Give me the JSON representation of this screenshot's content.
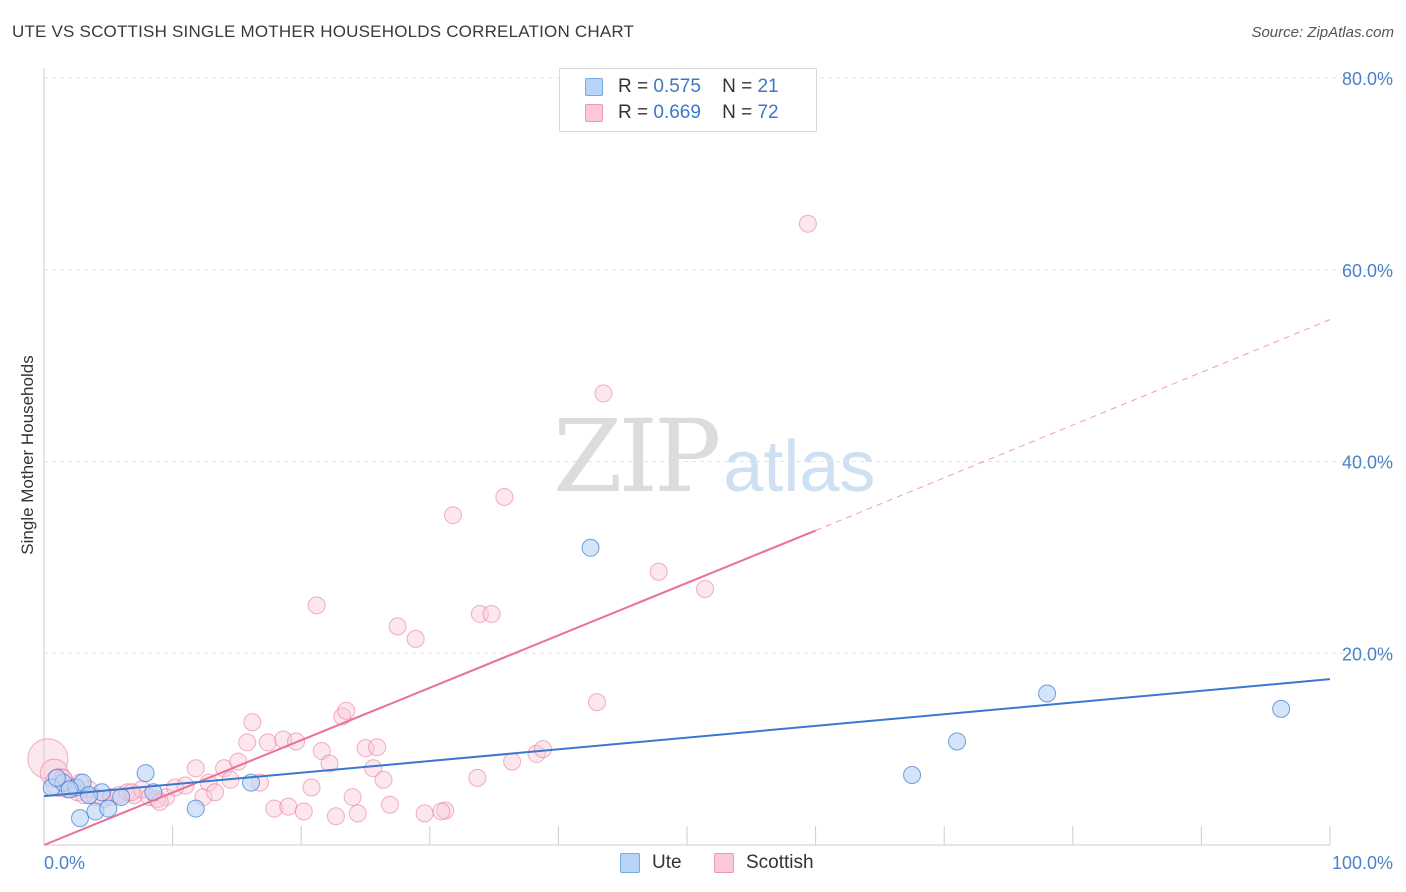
{
  "title": "UTE VS SCOTTISH SINGLE MOTHER HOUSEHOLDS CORRELATION CHART",
  "source": "Source: ZipAtlas.com",
  "watermark": {
    "part1": "ZIP",
    "part2": "atlas"
  },
  "legend_top": {
    "rows": [
      {
        "r_label": "R =",
        "r_value": "0.575",
        "n_label": "N =",
        "n_value": "21"
      },
      {
        "r_label": "R =",
        "r_value": "0.669",
        "n_label": "N =",
        "n_value": "72"
      }
    ]
  },
  "legend_bottom": {
    "ute": "Ute",
    "scottish": "Scottish"
  },
  "chart_data": {
    "type": "scatter",
    "title": "UTE VS SCOTTISH SINGLE MOTHER HOUSEHOLDS CORRELATION CHART",
    "xlabel": "",
    "ylabel": "Single Mother Households",
    "xlim": [
      0,
      100
    ],
    "ylim": [
      0,
      80
    ],
    "x_tick_labels": [
      "0.0%",
      "100.0%"
    ],
    "y_ticks": [
      20,
      40,
      60,
      80
    ],
    "y_tick_labels": [
      "20.0%",
      "40.0%",
      "60.0%",
      "80.0%"
    ],
    "grid": true,
    "colors": {
      "ute": "#3a78d0",
      "scottish": "#e8709a",
      "ute_fill": "#b8d4f7",
      "scottish_fill": "#f9c9d8"
    },
    "series": [
      {
        "name": "Ute",
        "r": 0.575,
        "n": 21,
        "points": [
          [
            0.6,
            6.0
          ],
          [
            1.5,
            6.5
          ],
          [
            2.5,
            6.0
          ],
          [
            3.0,
            6.5
          ],
          [
            2.8,
            2.8
          ],
          [
            4.0,
            3.5
          ],
          [
            4.5,
            5.5
          ],
          [
            5.0,
            3.8
          ],
          [
            6.0,
            5.0
          ],
          [
            7.9,
            7.5
          ],
          [
            8.5,
            5.5
          ],
          [
            11.8,
            3.8
          ],
          [
            16.1,
            6.5
          ],
          [
            42.5,
            31.0
          ],
          [
            67.5,
            7.3
          ],
          [
            71.0,
            10.8
          ],
          [
            78.0,
            15.8
          ],
          [
            96.2,
            14.2
          ],
          [
            1.0,
            7.0
          ],
          [
            2.0,
            5.8
          ],
          [
            3.5,
            5.2
          ]
        ],
        "trend": {
          "x0": 0,
          "y0": 5.1,
          "x1": 100,
          "y1": 17.3
        }
      },
      {
        "name": "Scottish",
        "r": 0.669,
        "n": 72,
        "points": [
          [
            0.3,
            9.0
          ],
          [
            0.8,
            7.5
          ],
          [
            1.2,
            6.5
          ],
          [
            1.8,
            5.8
          ],
          [
            2.2,
            6.0
          ],
          [
            2.6,
            5.5
          ],
          [
            3.1,
            5.2
          ],
          [
            3.5,
            5.8
          ],
          [
            4.0,
            5.0
          ],
          [
            4.6,
            4.8
          ],
          [
            5.2,
            5.0
          ],
          [
            5.8,
            5.2
          ],
          [
            6.5,
            5.5
          ],
          [
            7.0,
            5.2
          ],
          [
            7.6,
            5.8
          ],
          [
            8.2,
            5.0
          ],
          [
            8.8,
            4.8
          ],
          [
            9.5,
            5.0
          ],
          [
            10.2,
            6.0
          ],
          [
            11.0,
            6.2
          ],
          [
            11.8,
            8.0
          ],
          [
            12.4,
            5.0
          ],
          [
            12.8,
            6.5
          ],
          [
            13.3,
            5.5
          ],
          [
            14.0,
            8.0
          ],
          [
            14.5,
            6.8
          ],
          [
            15.1,
            8.7
          ],
          [
            15.8,
            10.7
          ],
          [
            16.2,
            12.8
          ],
          [
            16.8,
            6.5
          ],
          [
            17.4,
            10.7
          ],
          [
            17.9,
            3.8
          ],
          [
            18.6,
            11.0
          ],
          [
            19.0,
            4.0
          ],
          [
            19.6,
            10.8
          ],
          [
            20.2,
            3.5
          ],
          [
            20.8,
            6.0
          ],
          [
            21.2,
            25.0
          ],
          [
            21.6,
            9.8
          ],
          [
            22.2,
            8.5
          ],
          [
            22.7,
            3.0
          ],
          [
            23.2,
            13.4
          ],
          [
            23.5,
            14.0
          ],
          [
            24.0,
            5.0
          ],
          [
            24.4,
            3.3
          ],
          [
            25.0,
            10.1
          ],
          [
            25.6,
            8.0
          ],
          [
            25.9,
            10.2
          ],
          [
            26.4,
            6.8
          ],
          [
            26.9,
            4.2
          ],
          [
            27.5,
            22.8
          ],
          [
            28.9,
            21.5
          ],
          [
            29.6,
            3.3
          ],
          [
            31.2,
            3.6
          ],
          [
            30.9,
            3.5
          ],
          [
            31.8,
            34.4
          ],
          [
            33.7,
            7.0
          ],
          [
            33.9,
            24.1
          ],
          [
            34.8,
            24.1
          ],
          [
            35.8,
            36.3
          ],
          [
            36.4,
            8.7
          ],
          [
            38.3,
            9.5
          ],
          [
            38.8,
            10.0
          ],
          [
            43.0,
            14.9
          ],
          [
            43.5,
            47.1
          ],
          [
            47.8,
            28.5
          ],
          [
            51.4,
            26.7
          ],
          [
            59.4,
            64.8
          ],
          [
            9.0,
            4.5
          ],
          [
            6.8,
            5.5
          ],
          [
            1.5,
            7.0
          ],
          [
            2.8,
            6.5
          ]
        ],
        "trend": {
          "x0": 0,
          "y0": 0.0,
          "x1": 60,
          "y1": 32.8,
          "dash_x1": 100,
          "dash_y1": 54.8
        }
      }
    ]
  }
}
